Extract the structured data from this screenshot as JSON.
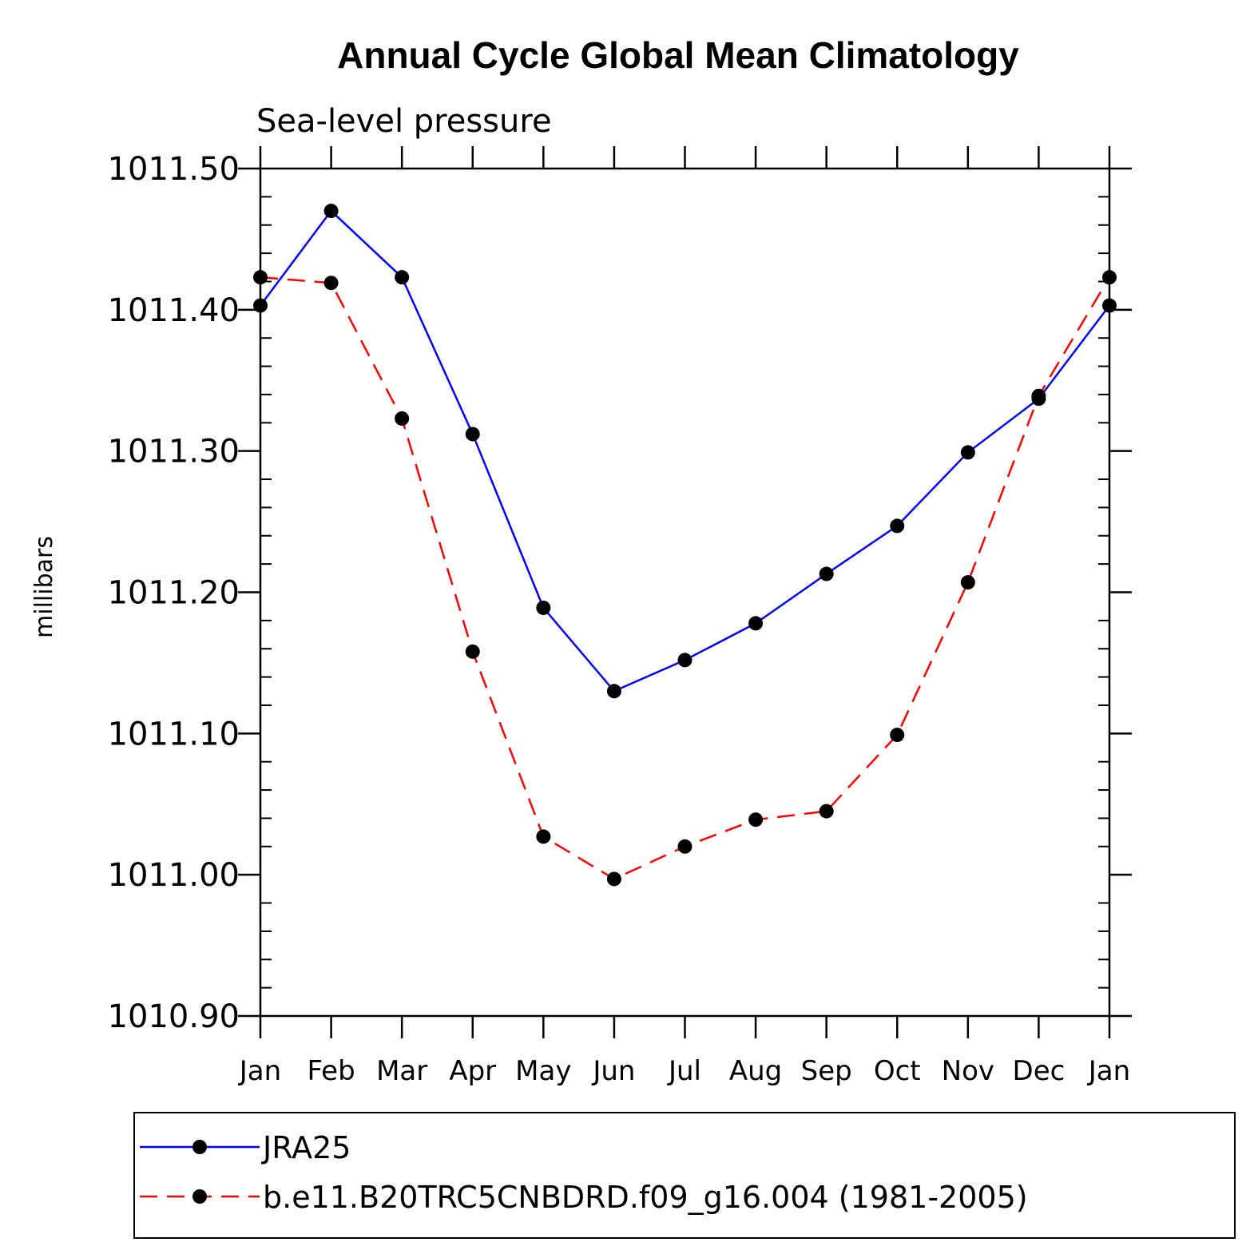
{
  "chart_data": {
    "type": "line",
    "title": "Annual Cycle Global Mean Climatology",
    "subtitle": "Sea-level pressure",
    "xlabel": "",
    "ylabel": "millibars",
    "categories": [
      "Jan",
      "Feb",
      "Mar",
      "Apr",
      "May",
      "Jun",
      "Jul",
      "Aug",
      "Sep",
      "Oct",
      "Nov",
      "Dec",
      "Jan"
    ],
    "ylim": [
      1010.9,
      1011.5
    ],
    "yticks": [
      "1010.90",
      "1011.00",
      "1011.10",
      "1011.20",
      "1011.30",
      "1011.40",
      "1011.50"
    ],
    "ytick_values": [
      1010.9,
      1011.0,
      1011.1,
      1011.2,
      1011.3,
      1011.4,
      1011.5
    ],
    "series": [
      {
        "name": "JRA25",
        "color": "#0000ff",
        "dash": "solid",
        "values": [
          1011.403,
          1011.47,
          1011.423,
          1011.312,
          1011.189,
          1011.13,
          1011.152,
          1011.178,
          1011.213,
          1011.247,
          1011.299,
          1011.337,
          1011.403
        ]
      },
      {
        "name": "b.e11.B20TRC5CNBDRD.f09_g16.004 (1981-2005)",
        "color": "#ff0000",
        "dash": "dashed",
        "values": [
          1011.423,
          1011.419,
          1011.323,
          1011.158,
          1011.027,
          1010.997,
          1011.02,
          1011.039,
          1011.045,
          1011.099,
          1011.207,
          1011.339,
          1011.423
        ]
      }
    ],
    "legend_position": "bottom"
  }
}
